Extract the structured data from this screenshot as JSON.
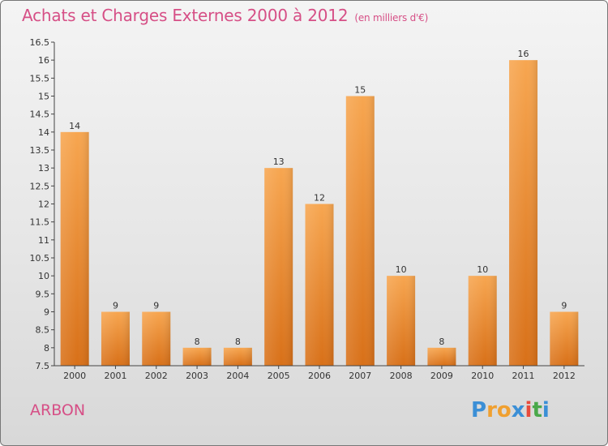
{
  "header": {
    "title": "Achats et Charges Externes 2000 à 2012",
    "subtitle": "(en milliers d'€)"
  },
  "commune_name": "ARBON",
  "logo": {
    "letters": [
      "P",
      "r",
      "o",
      "x",
      "i",
      "t",
      "i"
    ],
    "colors": [
      "#3b8fd6",
      "#f0a030",
      "#f0a030",
      "#3b8fd6",
      "#e84b3c",
      "#4aa84a",
      "#3b8fd6"
    ]
  },
  "chart_data": {
    "type": "bar",
    "title": "Achats et Charges Externes 2000 à 2012",
    "subtitle": "(en milliers d'€)",
    "categories": [
      "2000",
      "2001",
      "2002",
      "2003",
      "2004",
      "2005",
      "2006",
      "2007",
      "2008",
      "2009",
      "2010",
      "2011",
      "2012"
    ],
    "values": [
      14,
      9,
      9,
      8,
      8,
      13,
      12,
      15,
      10,
      8,
      10,
      16,
      9
    ],
    "value_labels": [
      "14",
      "9",
      "9",
      "8",
      "8",
      "13",
      "12",
      "15",
      "10",
      "8",
      "10",
      "16",
      "9"
    ],
    "ylim": [
      7.5,
      16.5
    ],
    "yticks": [
      7.5,
      8,
      8.5,
      9,
      9.5,
      10,
      10.5,
      11,
      11.5,
      12,
      12.5,
      13,
      13.5,
      14,
      14.5,
      15,
      15.5,
      16,
      16.5
    ],
    "ytick_labels": [
      "7.5",
      "8",
      "8.5",
      "9",
      "9.5",
      "10",
      "10.5",
      "11",
      "11.5",
      "12",
      "12.5",
      "13",
      "13.5",
      "14",
      "14.5",
      "15",
      "15.5",
      "16",
      "16.5"
    ],
    "grid": false,
    "bar_color_top": "#f7a650",
    "bar_color_bottom": "#d87018"
  }
}
